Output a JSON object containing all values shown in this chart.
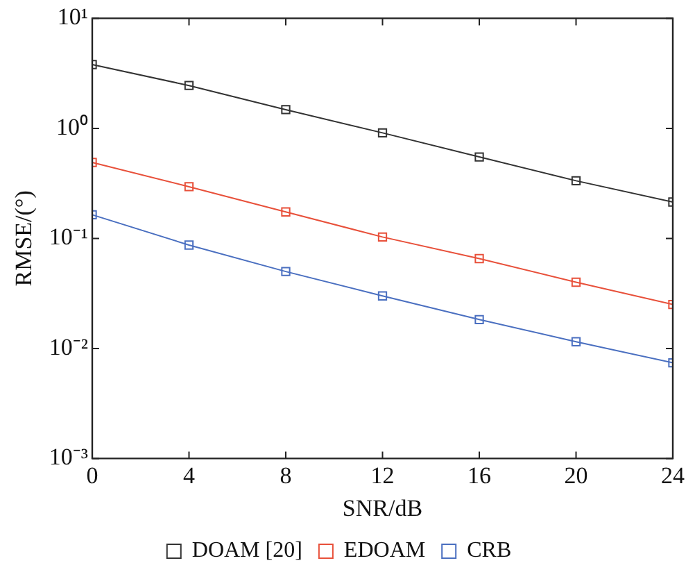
{
  "chart_data": {
    "type": "line",
    "xlabel": "SNR/dB",
    "ylabel": "RMSE/(°)",
    "x": [
      0,
      4,
      8,
      12,
      16,
      20,
      24
    ],
    "xlim": [
      0,
      24
    ],
    "xticks": [
      0,
      4,
      8,
      12,
      16,
      20,
      24
    ],
    "log": "y",
    "ylim": [
      0.001,
      10
    ],
    "yticks": [
      {
        "value": 0.001,
        "label": "10⁻³"
      },
      {
        "value": 0.01,
        "label": "10⁻²"
      },
      {
        "value": 0.1,
        "label": "10⁻¹"
      },
      {
        "value": 1,
        "label": "10⁰"
      },
      {
        "value": 10,
        "label": "10¹"
      }
    ],
    "grid": false,
    "legend": "bottom",
    "marker": "square",
    "line_style": "solid",
    "series": [
      {
        "name": "DOAM [20]",
        "color": "#333333",
        "values": [
          3.8,
          2.45,
          1.48,
          0.91,
          0.55,
          0.334,
          0.214
        ]
      },
      {
        "name": "EDOAM",
        "color": "#e8503a",
        "values": [
          0.49,
          0.295,
          0.174,
          0.103,
          0.0655,
          0.04,
          0.0251
        ]
      },
      {
        "name": "CRB",
        "color": "#4a6fc0",
        "values": [
          0.164,
          0.087,
          0.05,
          0.03,
          0.0183,
          0.0115,
          0.0074
        ]
      }
    ]
  }
}
